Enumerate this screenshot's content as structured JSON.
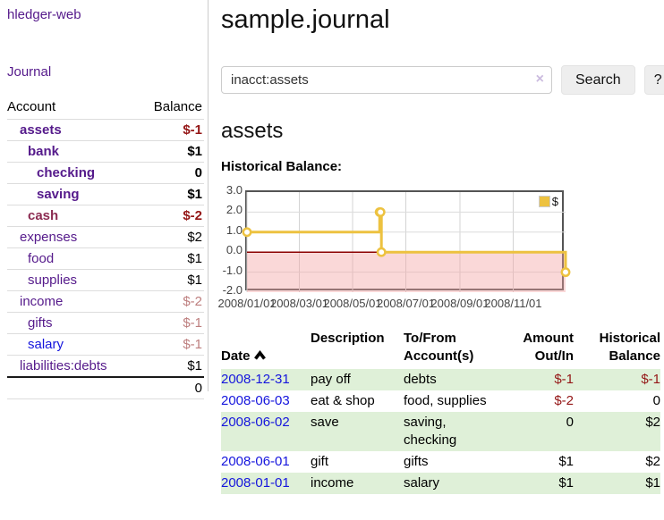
{
  "app": {
    "brand": "hledger-web",
    "nav_journal": "Journal"
  },
  "sidebar": {
    "accounts_header": {
      "account": "Account",
      "balance": "Balance"
    },
    "accounts": [
      {
        "name": "assets",
        "balance": "$-1"
      },
      {
        "name": "bank",
        "balance": "$1"
      },
      {
        "name": "checking",
        "balance": "0"
      },
      {
        "name": "saving",
        "balance": "$1"
      },
      {
        "name": "cash",
        "balance": "$-2"
      },
      {
        "name": "expenses",
        "balance": "$2"
      },
      {
        "name": "food",
        "balance": "$1"
      },
      {
        "name": "supplies",
        "balance": "$1"
      },
      {
        "name": "income",
        "balance": "$-2"
      },
      {
        "name": "gifts",
        "balance": "$-1"
      },
      {
        "name": "salary",
        "balance": "$-1"
      },
      {
        "name": "liabilities:debts",
        "balance": "$1"
      }
    ],
    "total": "0"
  },
  "header": {
    "title": "sample.journal"
  },
  "search": {
    "value": "inacct:assets",
    "clear_icon": "×",
    "button": "Search",
    "help_button": "?"
  },
  "account_page": {
    "heading": "assets"
  },
  "chart_data": {
    "type": "line",
    "step": true,
    "title": "Historical Balance:",
    "legend": "$",
    "points": [
      [
        "2008/01/01",
        1.0
      ],
      [
        "2008/06/01",
        2.0
      ],
      [
        "2008/06/02",
        2.0
      ],
      [
        "2008/06/03",
        0.0
      ],
      [
        "2008/12/31",
        -1.0
      ]
    ],
    "xrange": [
      "2008/01/01",
      "2008/12/31"
    ],
    "xticks": [
      "2008/01/01",
      "2008/03/01",
      "2008/05/01",
      "2008/07/01",
      "2008/09/01",
      "2008/11/01"
    ],
    "yticks": [
      3.0,
      2.0,
      1.0,
      0.0,
      -1.0,
      -2.0
    ],
    "ylim": [
      -2.0,
      3.0
    ],
    "grid": true,
    "legend_position": "top-right",
    "series_color": "#edc240",
    "negative_fill": "#f2a2a2",
    "zero_line_color": "#8b0000"
  },
  "transactions": {
    "headers": {
      "date": "Date",
      "description": "Description",
      "accounts": "To/From\nAccount(s)",
      "amount": "Amount\nOut/In",
      "balance": "Historical\nBalance"
    },
    "rows": [
      {
        "date": "2008-12-31",
        "description": "pay off",
        "accounts": "debts",
        "amount": "$-1",
        "balance": "$-1"
      },
      {
        "date": "2008-06-03",
        "description": "eat & shop",
        "accounts": "food, supplies",
        "amount": "$-2",
        "balance": "0"
      },
      {
        "date": "2008-06-02",
        "description": "save",
        "accounts": "saving, checking",
        "amount": "0",
        "balance": "$2"
      },
      {
        "date": "2008-06-01",
        "description": "gift",
        "accounts": "gifts",
        "amount": "$1",
        "balance": "$2"
      },
      {
        "date": "2008-01-01",
        "description": "income",
        "accounts": "salary",
        "amount": "$1",
        "balance": "$1"
      }
    ]
  }
}
